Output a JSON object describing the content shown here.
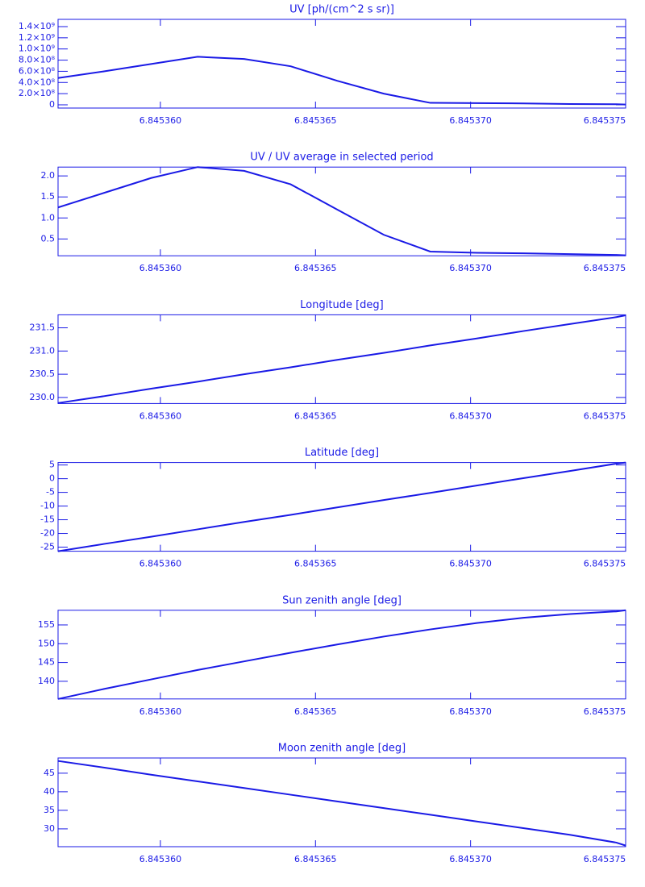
{
  "chart_data": [
    {
      "type": "line",
      "title": "UV [ph/(cm^2 s sr)]",
      "color": "#1a1ae6",
      "x": [
        6.8453567,
        6.8453582,
        6.8453597,
        6.8453612,
        6.8453627,
        6.8453642,
        6.8453657,
        6.8453672,
        6.8453687,
        6.8453702,
        6.8453717,
        6.8453732,
        6.8453747,
        6.845375
      ],
      "values": [
        480000000,
        600000000,
        730000000,
        860000000,
        820000000,
        690000000,
        430000000,
        200000000,
        35000000,
        30000000,
        25000000,
        15000000,
        10000000,
        5000000
      ],
      "xlim": [
        6.8453567,
        6.845375
      ],
      "xticks": [
        {
          "value": 6.84536,
          "label": "6.845360"
        },
        {
          "value": 6.845365,
          "label": "6.845365"
        },
        {
          "value": 6.84537,
          "label": "6.845370"
        },
        {
          "value": 6.845375,
          "label": "6.845375"
        }
      ],
      "ylim": [
        -58000000,
        1530000000
      ],
      "yticks": [
        0,
        {
          "value": 200000000,
          "label": "2.0×10⁸"
        },
        {
          "value": 400000000,
          "label": "4.0×10⁸"
        },
        {
          "value": 600000000,
          "label": "6.0×10⁸"
        },
        {
          "value": 800000000,
          "label": "8.0×10⁸"
        },
        {
          "value": 1000000000,
          "label": "1.0×10⁹"
        },
        {
          "value": 1200000000,
          "label": "1.2×10⁹"
        },
        {
          "value": 1400000000,
          "label": "1.4×10⁹"
        }
      ]
    },
    {
      "type": "line",
      "title": "UV / UV average in selected period",
      "color": "#1a1ae6",
      "x": [
        6.8453567,
        6.8453582,
        6.8453597,
        6.8453612,
        6.8453627,
        6.8453642,
        6.8453657,
        6.8453672,
        6.8453687,
        6.8453702,
        6.8453717,
        6.8453732,
        6.8453747,
        6.845375
      ],
      "values": [
        1.25,
        1.6,
        1.95,
        2.21,
        2.12,
        1.8,
        1.2,
        0.6,
        0.2,
        0.17,
        0.16,
        0.14,
        0.12,
        0.11
      ],
      "xlim": [
        6.8453567,
        6.845375
      ],
      "xticks": [
        {
          "value": 6.84536,
          "label": "6.845360"
        },
        {
          "value": 6.845365,
          "label": "6.845365"
        },
        {
          "value": 6.84537,
          "label": "6.845370"
        },
        {
          "value": 6.845375,
          "label": "6.845375"
        }
      ],
      "ylim": [
        0.1,
        2.21
      ],
      "yticks": [
        0.5,
        {
          "value": 1,
          "label": "1.0"
        },
        1.5,
        {
          "value": 2,
          "label": "2.0"
        }
      ]
    },
    {
      "type": "line",
      "title": "Longitude [deg]",
      "color": "#1a1ae6",
      "x": [
        6.8453567,
        6.8453582,
        6.8453597,
        6.8453612,
        6.8453627,
        6.8453642,
        6.8453657,
        6.8453672,
        6.8453687,
        6.8453702,
        6.8453717,
        6.8453732,
        6.8453747,
        6.845375
      ],
      "values": [
        229.88,
        230.03,
        230.19,
        230.34,
        230.5,
        230.65,
        230.81,
        230.96,
        231.12,
        231.27,
        231.43,
        231.58,
        231.73,
        231.77
      ],
      "xlim": [
        6.8453567,
        6.845375
      ],
      "xticks": [
        {
          "value": 6.84536,
          "label": "6.845360"
        },
        {
          "value": 6.845365,
          "label": "6.845365"
        },
        {
          "value": 6.84537,
          "label": "6.845370"
        },
        {
          "value": 6.845375,
          "label": "6.845375"
        }
      ],
      "ylim": [
        229.87,
        231.78
      ],
      "yticks": [
        {
          "value": 230,
          "label": "230.0"
        },
        230.5,
        {
          "value": 231,
          "label": "231.0"
        },
        231.5
      ]
    },
    {
      "type": "line",
      "title": "Latitude [deg]",
      "color": "#1a1ae6",
      "x": [
        6.8453567,
        6.8453582,
        6.8453597,
        6.8453612,
        6.8453627,
        6.8453642,
        6.8453657,
        6.8453672,
        6.8453687,
        6.8453702,
        6.8453717,
        6.8453732,
        6.8453747,
        6.845375
      ],
      "values": [
        -26.5,
        -23.8,
        -21.2,
        -18.5,
        -15.8,
        -13.2,
        -10.5,
        -7.8,
        -5.2,
        -2.5,
        0.2,
        2.8,
        5.5,
        5.9
      ],
      "xlim": [
        6.8453567,
        6.845375
      ],
      "xticks": [
        {
          "value": 6.84536,
          "label": "6.845360"
        },
        {
          "value": 6.845365,
          "label": "6.845365"
        },
        {
          "value": 6.84537,
          "label": "6.845370"
        },
        {
          "value": 6.845375,
          "label": "6.845375"
        }
      ],
      "ylim": [
        -26.5,
        5.9
      ],
      "yticks": [
        -25,
        -20,
        -15,
        -10,
        -5,
        0,
        5
      ]
    },
    {
      "type": "line",
      "title": "Sun zenith angle [deg]",
      "color": "#1a1ae6",
      "x": [
        6.8453567,
        6.8453582,
        6.8453597,
        6.8453612,
        6.8453627,
        6.8453642,
        6.8453657,
        6.8453672,
        6.8453687,
        6.8453702,
        6.8453717,
        6.8453732,
        6.8453747,
        6.845375
      ],
      "values": [
        135.3,
        138.0,
        140.5,
        143.0,
        145.3,
        147.6,
        149.8,
        151.9,
        153.8,
        155.5,
        156.9,
        157.9,
        158.6,
        158.9
      ],
      "xlim": [
        6.8453567,
        6.845375
      ],
      "xticks": [
        {
          "value": 6.84536,
          "label": "6.845360"
        },
        {
          "value": 6.845365,
          "label": "6.845365"
        },
        {
          "value": 6.84537,
          "label": "6.845370"
        },
        {
          "value": 6.845375,
          "label": "6.845375"
        }
      ],
      "ylim": [
        135.3,
        158.9
      ],
      "yticks": [
        140,
        145,
        150,
        155
      ]
    },
    {
      "type": "line",
      "title": "Moon zenith angle [deg]",
      "color": "#1a1ae6",
      "x": [
        6.8453567,
        6.8453582,
        6.8453597,
        6.8453612,
        6.8453627,
        6.8453642,
        6.8453657,
        6.8453672,
        6.8453687,
        6.8453702,
        6.8453717,
        6.8453732,
        6.8453747,
        6.845375
      ],
      "values": [
        48.3,
        46.5,
        44.6,
        42.8,
        41.0,
        39.2,
        37.4,
        35.6,
        33.8,
        32.0,
        30.2,
        28.4,
        26.3,
        25.5
      ],
      "xlim": [
        6.8453567,
        6.845375
      ],
      "xticks": [
        {
          "value": 6.84536,
          "label": "6.845360"
        },
        {
          "value": 6.845365,
          "label": "6.845365"
        },
        {
          "value": 6.84537,
          "label": "6.845370"
        },
        {
          "value": 6.845375,
          "label": "6.845375"
        }
      ],
      "ylim": [
        25.2,
        49.1
      ],
      "yticks": [
        30,
        35,
        40,
        45
      ]
    }
  ]
}
